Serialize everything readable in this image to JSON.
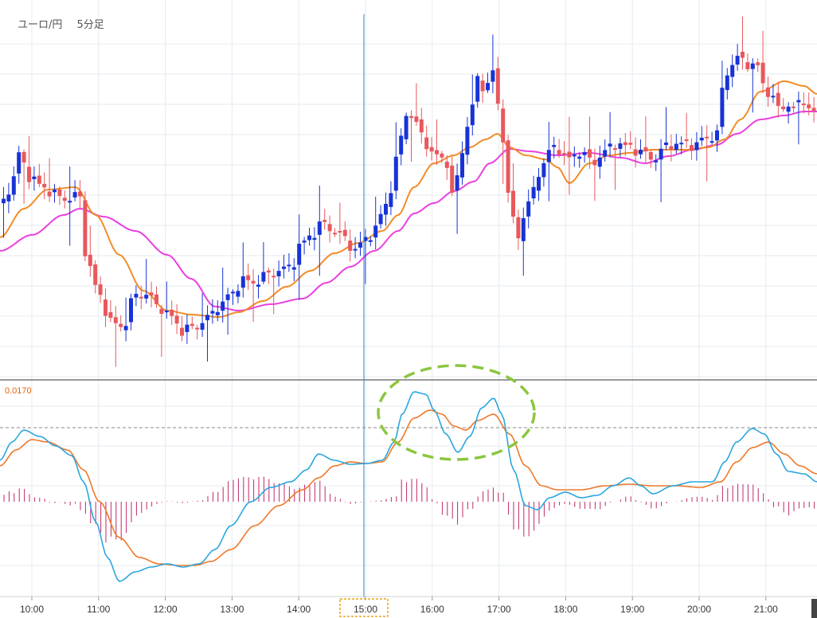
{
  "header": {
    "pair": "ユーロ/円",
    "timeframe": "5分足"
  },
  "colors": {
    "up": "#1733d6",
    "down": "#e8585c",
    "ma_short": "#f28c28",
    "ma_long": "#ea3fe0",
    "macd": "#2aa6df",
    "signal": "#f0782a",
    "hist": "#c0286a",
    "grid": "#e6ebf0",
    "cursor": "#3a7fd0",
    "highlight": "#8cc63f",
    "time_box": "#e8a317"
  },
  "chart_data": [
    {
      "type": "candlestick",
      "title": "",
      "x": [
        "10:00",
        "11:00",
        "12:00",
        "13:00",
        "14:00",
        "15:00",
        "16:00",
        "17:00",
        "18:00",
        "19:00",
        "20:00",
        "21:00"
      ],
      "x_ticks": [
        "10:00",
        "11:00",
        "12:00",
        "13:00",
        "14:00",
        "15:00",
        "16:00",
        "17:00",
        "18:00",
        "19:00",
        "20:00",
        "21:00"
      ],
      "highlighted_tick": "15:00",
      "series": [
        {
          "name": "",
          "kind": "moving-average-short",
          "color": "#f28c28"
        },
        {
          "name": "",
          "kind": "moving-average-long",
          "color": "#ea3fe0"
        }
      ],
      "grid": true
    },
    {
      "type": "line",
      "title": "",
      "subplot": "MACD",
      "level_label": "0.0170",
      "series": [
        {
          "name": "",
          "kind": "macd",
          "color": "#2aa6df"
        },
        {
          "name": "",
          "kind": "signal",
          "color": "#f0782a"
        },
        {
          "name": "",
          "kind": "histogram",
          "color": "#c0286a"
        }
      ],
      "annotation": "dashed-ellipse-around-16:00-17:00-peaks",
      "grid": true
    }
  ]
}
